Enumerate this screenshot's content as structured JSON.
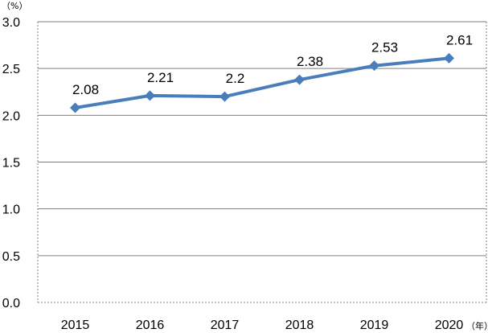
{
  "chart_data": {
    "type": "line",
    "x": [
      "2015",
      "2016",
      "2017",
      "2018",
      "2019",
      "2020"
    ],
    "series": [
      {
        "values": [
          2.08,
          2.21,
          2.2,
          2.38,
          2.53,
          2.61
        ],
        "labels": [
          "2.08",
          "2.21",
          "2.2",
          "2.38",
          "2.53",
          "2.61"
        ]
      }
    ],
    "yticks": [
      "0.0",
      "0.5",
      "1.0",
      "1.5",
      "2.0",
      "2.5",
      "3.0"
    ],
    "ylim": [
      0,
      3.0
    ],
    "y_unit": "（%）",
    "x_unit": "（年）",
    "grid": true,
    "colors": {
      "line": "#4a7ebb",
      "marker": "#4a7ebb",
      "grid": "#7f7f7f",
      "border": "#7f7f7f"
    }
  }
}
